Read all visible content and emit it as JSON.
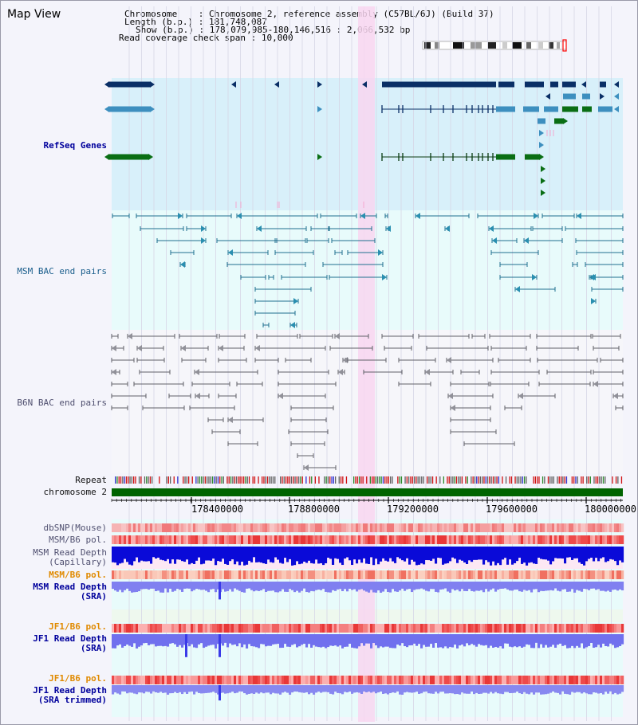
{
  "view_title": "Map View",
  "info": {
    "chromosome_key": "Chromosome",
    "chromosome_value": "Chromosome 2, reference assembly (C57BL/6J) (Build 37)",
    "length_key": "Length (b.p.)",
    "length_value": "181,748,087",
    "show_key": "Show (b.p.)",
    "show_value": "178,079,985-180,146,516 : 2,066,532 bp",
    "coverage_key": "Read coverage check span",
    "coverage_value": "10,000"
  },
  "tracks": {
    "refseq": "RefSeq Genes",
    "msm_bac": "MSM BAC end pairs",
    "b6n_bac": "B6N BAC end pairs",
    "repeat": "Repeat",
    "chromosome": "chromosome 2",
    "dbsnp": "dbSNP(Mouse)",
    "msm_b6_pol_1": "MSM/B6 pol.",
    "msm_read_depth_cap_1": "MSM Read Depth",
    "msm_read_depth_cap_2": "(Capillary)",
    "msm_b6_pol_2": "MSM/B6 pol.",
    "msm_read_depth_sra_1": "MSM Read Depth",
    "msm_read_depth_sra_2": "(SRA)",
    "jf1_b6_pol_1": "JF1/B6 pol.",
    "jf1_read_depth_sra_1": "JF1 Read Depth",
    "jf1_read_depth_sra_2": "(SRA)",
    "jf1_b6_pol_2": "JF1/B6 pol.",
    "jf1_read_depth_trim_1": "JF1 Read Depth",
    "jf1_read_depth_trim_2": "(SRA trimmed)"
  },
  "axis": {
    "ticks": [
      "178400000",
      "178800000",
      "179200000",
      "179600000",
      "180000000"
    ]
  },
  "colors": {
    "refseq_bg": "#d8f0fa",
    "msm_bg": "#e8fbfb",
    "b6n_bg": "#f6f6fa",
    "gene_dark": "#0a2f66",
    "gene_mid": "#3d8fbf",
    "gene_green": "#0a6e14",
    "chromosome_bar": "#006400",
    "highlight": "#f8d6f0",
    "depth_blue": "#2020e0",
    "depth_light": "#8080f0"
  }
}
